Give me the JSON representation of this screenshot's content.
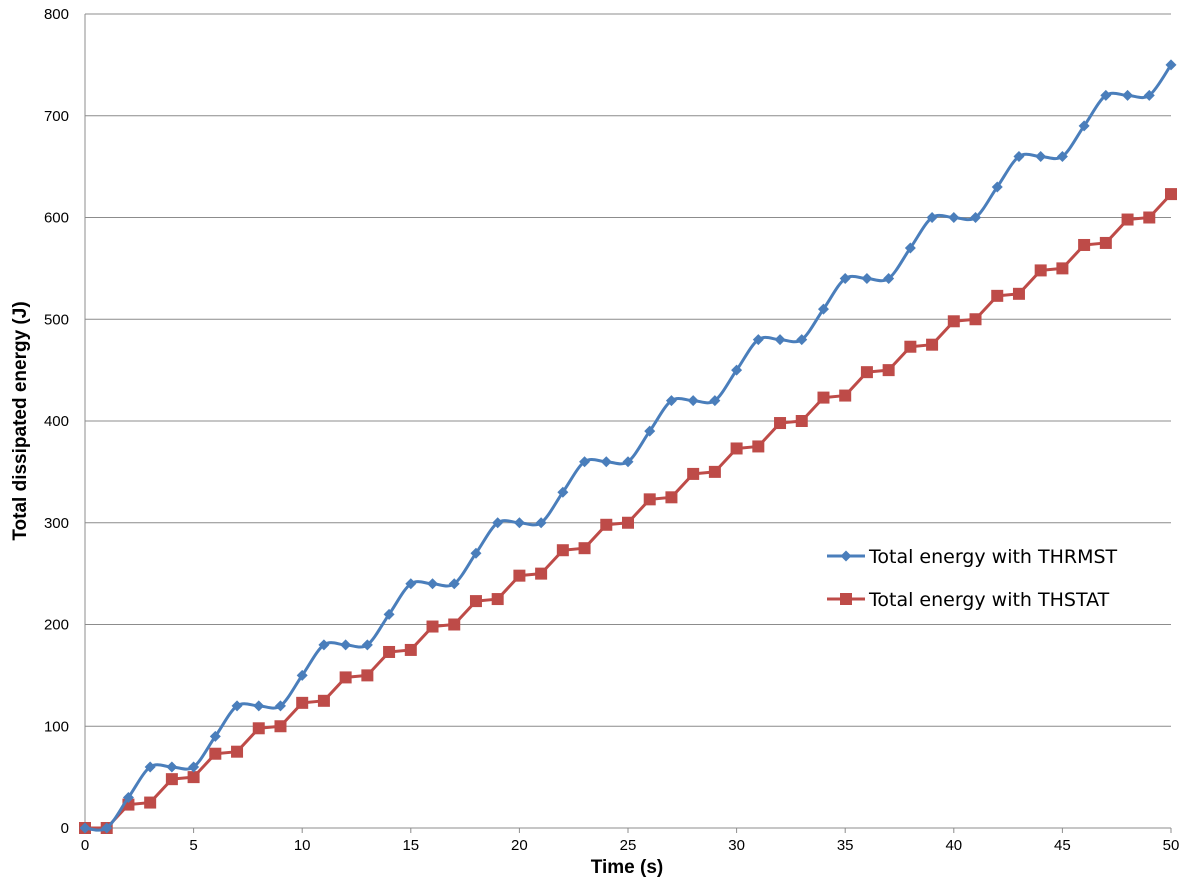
{
  "chart_data": {
    "type": "line",
    "title": "",
    "xlabel": "Time (s)",
    "ylabel": "Total dissipated energy (J)",
    "xlim": [
      0,
      50
    ],
    "ylim": [
      0,
      800
    ],
    "x_ticks": [
      0,
      5,
      10,
      15,
      20,
      25,
      30,
      35,
      40,
      45,
      50
    ],
    "y_ticks": [
      0,
      100,
      200,
      300,
      400,
      500,
      600,
      700,
      800
    ],
    "grid": "horizontal",
    "legend_position": "right-middle",
    "series": [
      {
        "name": "Total energy with THRMST",
        "color": "#4a7ebb",
        "marker": "diamond",
        "smooth": true,
        "x": [
          0,
          1,
          2,
          3,
          4,
          5,
          6,
          7,
          8,
          9,
          10,
          11,
          12,
          13,
          14,
          15,
          16,
          17,
          18,
          19,
          20,
          21,
          22,
          23,
          24,
          25,
          26,
          27,
          28,
          29,
          30,
          31,
          32,
          33,
          34,
          35,
          36,
          37,
          38,
          39,
          40,
          41,
          42,
          43,
          44,
          45,
          46,
          47,
          48,
          49,
          50
        ],
        "y": [
          0,
          0,
          30,
          60,
          60,
          60,
          90,
          120,
          120,
          120,
          150,
          180,
          180,
          180,
          210,
          240,
          240,
          240,
          270,
          300,
          300,
          300,
          330,
          360,
          360,
          360,
          390,
          420,
          420,
          420,
          450,
          480,
          480,
          480,
          510,
          540,
          540,
          540,
          570,
          600,
          600,
          600,
          630,
          660,
          660,
          660,
          690,
          720,
          720,
          720,
          750
        ]
      },
      {
        "name": "Total energy with THSTAT",
        "color": "#be4b48",
        "marker": "square",
        "smooth": false,
        "x": [
          0,
          1,
          2,
          3,
          4,
          5,
          6,
          7,
          8,
          9,
          10,
          11,
          12,
          13,
          14,
          15,
          16,
          17,
          18,
          19,
          20,
          21,
          22,
          23,
          24,
          25,
          26,
          27,
          28,
          29,
          30,
          31,
          32,
          33,
          34,
          35,
          36,
          37,
          38,
          39,
          40,
          41,
          42,
          43,
          44,
          45,
          46,
          47,
          48,
          49,
          50
        ],
        "y": [
          0,
          0,
          23,
          25,
          48,
          50,
          73,
          75,
          98,
          100,
          123,
          125,
          148,
          150,
          173,
          175,
          198,
          200,
          223,
          225,
          248,
          250,
          273,
          275,
          298,
          300,
          323,
          325,
          348,
          350,
          373,
          375,
          398,
          400,
          423,
          425,
          448,
          450,
          473,
          475,
          498,
          500,
          523,
          525,
          548,
          550,
          573,
          575,
          598,
          600,
          623
        ]
      }
    ]
  }
}
